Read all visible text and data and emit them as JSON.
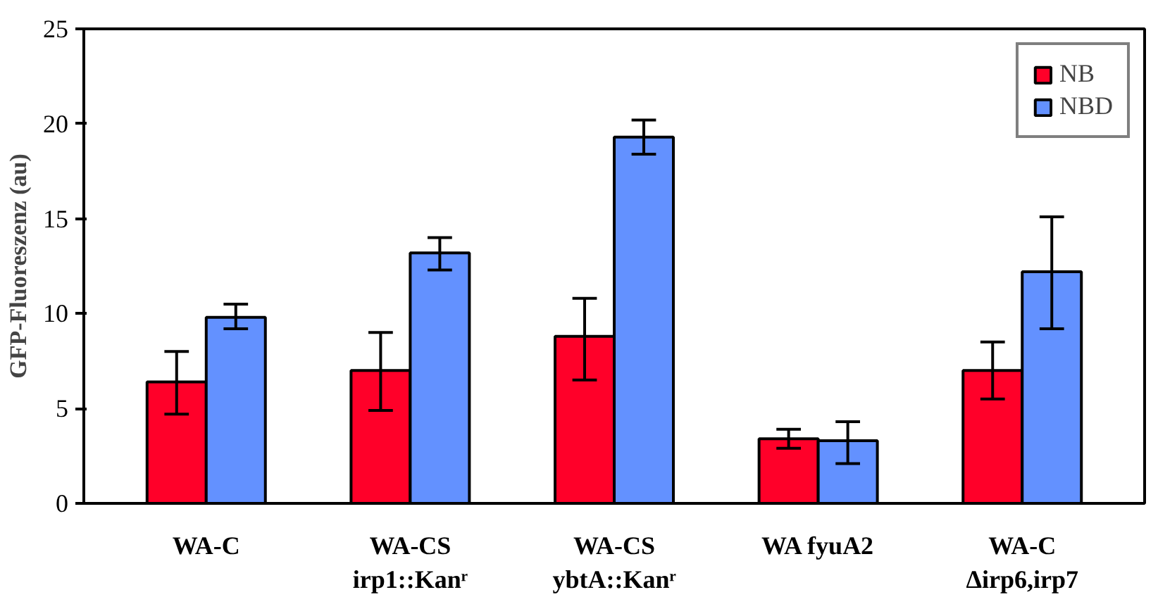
{
  "chart_data": {
    "type": "bar",
    "ylabel": "GFP-Fluoreszenz (au)",
    "categories": [
      "WA-C",
      "WA-CS\nirp1::Kanʳ",
      "WA-CS\nybtA::Kanʳ",
      "WA fyuA2",
      "WA-C\nΔirp6,irp7"
    ],
    "series": [
      {
        "name": "NB",
        "color": "#ff0029",
        "values": [
          6.4,
          7.0,
          8.8,
          3.4,
          7.0
        ],
        "errors": [
          [
            4.7,
            8.0
          ],
          [
            4.9,
            9.0
          ],
          [
            6.5,
            10.8
          ],
          [
            2.9,
            3.9
          ],
          [
            5.5,
            8.5
          ]
        ]
      },
      {
        "name": "NBD",
        "color": "#6391ff",
        "values": [
          9.8,
          13.2,
          19.3,
          3.3,
          12.2
        ],
        "errors": [
          [
            9.2,
            10.5
          ],
          [
            12.3,
            14.0
          ],
          [
            18.4,
            20.2
          ],
          [
            2.1,
            4.3
          ],
          [
            9.2,
            15.1
          ]
        ]
      }
    ],
    "ylim": [
      0,
      25
    ],
    "yticks": [
      0,
      5,
      10,
      15,
      20,
      25
    ],
    "grid": false,
    "legend": "top right"
  }
}
